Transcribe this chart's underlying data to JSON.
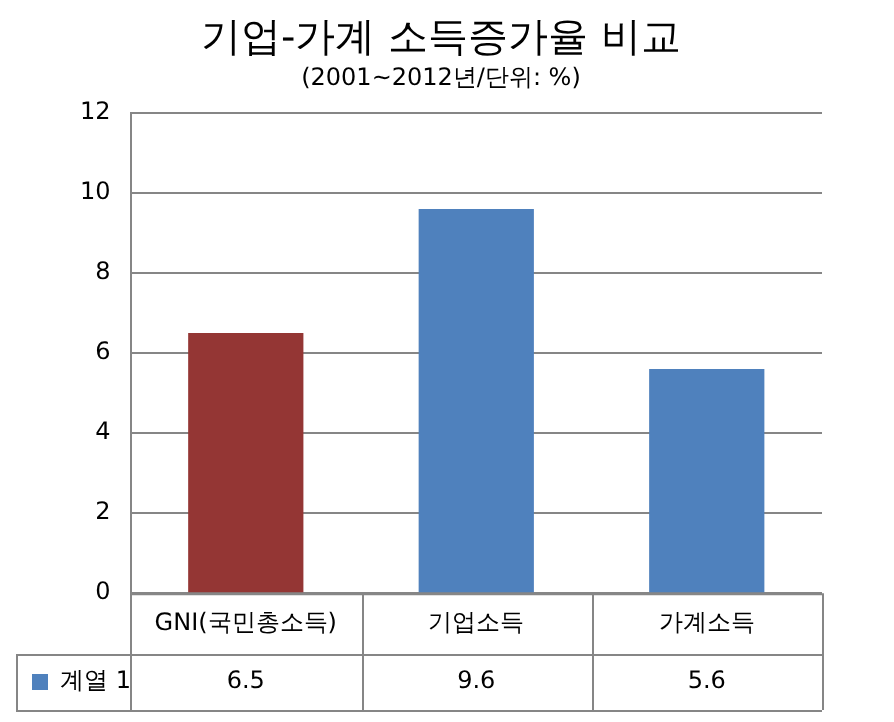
{
  "chart_data": {
    "type": "bar",
    "title": "기업-가계 소득증가율 비교",
    "subtitle": "(2001~2012년/단위: %)",
    "categories": [
      "GNI(국민총소득)",
      "기업소득",
      "가계소득"
    ],
    "series": [
      {
        "name": "계열 1",
        "color": "#4f81bd",
        "colors": [
          "#943634",
          "#4f81bd",
          "#4f81bd"
        ],
        "values": [
          6.5,
          9.6,
          5.6
        ]
      }
    ],
    "ylim": [
      0,
      12
    ],
    "yticks": [
      0,
      2,
      4,
      6,
      8,
      10,
      12
    ],
    "grid": "y",
    "legend": "bottom",
    "data_labels": true
  }
}
